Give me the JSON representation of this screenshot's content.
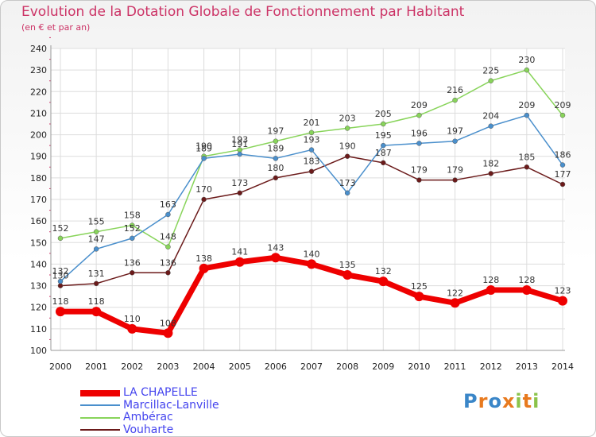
{
  "chart_data": {
    "type": "line",
    "title": "Evolution de la Dotation Globale de Fonctionnement par Habitant",
    "subtitle": "(en € et par an)",
    "xlabel": "",
    "ylabel": "",
    "x": [
      "2000",
      "2001",
      "2002",
      "2003",
      "2004",
      "2005",
      "2006",
      "2007",
      "2008",
      "2009",
      "2010",
      "2011",
      "2012",
      "2013",
      "2014"
    ],
    "ylim": [
      100,
      240
    ],
    "yticks": [
      100,
      110,
      120,
      130,
      140,
      150,
      160,
      170,
      180,
      190,
      200,
      210,
      220,
      230,
      240
    ],
    "grid": true,
    "legend_position": "bottom-left",
    "series": [
      {
        "name": "LA CHAPELLE",
        "color": "#ee0000",
        "values": [
          118,
          118,
          110,
          108,
          138,
          141,
          143,
          140,
          135,
          132,
          125,
          122,
          128,
          128,
          123
        ]
      },
      {
        "name": "Marcillac-Lanville",
        "color": "#4a8fcc",
        "values": [
          132,
          147,
          152,
          163,
          189,
          191,
          189,
          193,
          173,
          195,
          196,
          197,
          204,
          209,
          186
        ]
      },
      {
        "name": "Ambérac",
        "color": "#88d45a",
        "values": [
          152,
          155,
          158,
          148,
          190,
          193,
          197,
          201,
          203,
          205,
          209,
          216,
          225,
          230,
          209
        ]
      },
      {
        "name": "Vouharte",
        "color": "#6b1a1a",
        "values": [
          130,
          131,
          136,
          136,
          170,
          173,
          180,
          183,
          190,
          187,
          179,
          179,
          182,
          185,
          177
        ]
      }
    ]
  },
  "logo": {
    "text": "Proxiti",
    "letters": [
      "P",
      "r",
      "o",
      "x",
      "i",
      "t",
      "i"
    ]
  }
}
